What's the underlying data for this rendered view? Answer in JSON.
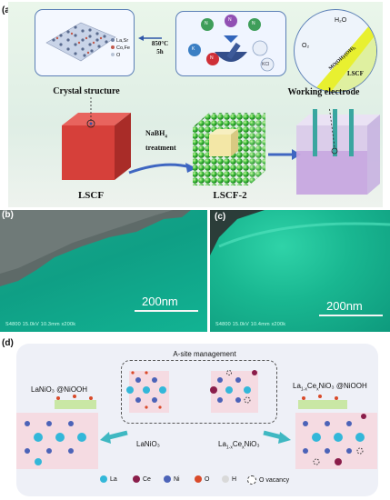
{
  "panel_a": {
    "letter": "(a)",
    "crystal_structure_label": "Crystal structure",
    "working_electrode_label": "Working electrode",
    "lscf_label": "LSCF",
    "lscf2_label": "LSCF-2",
    "treatment_line1": "NaBH",
    "treatment_sub": "4",
    "treatment_line2": "treatment",
    "synthesis_temp": "850°C",
    "synthesis_time": "5h",
    "legend_la_sr": "La,Sr",
    "legend_co_fe": "Co,Fe",
    "legend_o": "O",
    "precursor_labels": [
      "N",
      "N",
      "N",
      "K",
      "N",
      "KCl"
    ],
    "h2o_label": "H₂O",
    "o2_label": "O₂",
    "surface_layer_label": "MO(OH)/(OH)₂",
    "electrode_layer_label": "LSCF"
  },
  "panel_b": {
    "letter": "(b)",
    "scale_label": "200nm",
    "footer": "S4800 15.0kV 10.3mm x200k"
  },
  "panel_c": {
    "letter": "(c)",
    "scale_label": "200nm",
    "footer": "S4800 15.0kV 10.4mm x200k"
  },
  "panel_d": {
    "letter": "(d)",
    "title": "A-site management",
    "left_label": "LaNiO₃ @NiOOH",
    "right_label_main": "La",
    "right_label_sub1": "1-x",
    "right_label_mid": "Ce",
    "right_label_sub2": "x",
    "right_label_end": "NiO₃ @NiOOH",
    "center_left_label": "LaNiO₃",
    "center_right_label_main": "La",
    "center_right_sub1": "1-x",
    "center_right_mid": "Ce",
    "center_right_sub2": "x",
    "center_right_end": "NiO₃",
    "legend": [
      {
        "label": "La",
        "color": "#33b7d9"
      },
      {
        "label": "Ce",
        "color": "#8a1d4a"
      },
      {
        "label": "Ni",
        "color": "#4c63b8"
      },
      {
        "label": "O",
        "color": "#d94a2a"
      },
      {
        "label": "H",
        "color": "#d9d9d9"
      },
      {
        "label": "O vacancy",
        "color": "#ffffff"
      }
    ]
  }
}
